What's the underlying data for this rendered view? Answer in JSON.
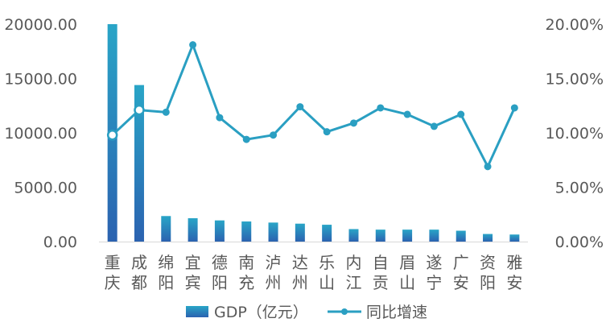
{
  "chart_data": {
    "type": "bar",
    "title": "",
    "categories": [
      "重庆",
      "成都",
      "绵阳",
      "宜宾",
      "德阳",
      "南充",
      "泸州",
      "达州",
      "乐山",
      "内江",
      "自贡",
      "眉山",
      "遂宁",
      "广安",
      "资阳",
      "雅安"
    ],
    "category_lines": [
      [
        "重",
        "庆"
      ],
      [
        "成",
        "都"
      ],
      [
        "绵",
        "阳"
      ],
      [
        "宜",
        "宾"
      ],
      [
        "德",
        "阳"
      ],
      [
        "南",
        "充"
      ],
      [
        "泸",
        "州"
      ],
      [
        "达",
        "州"
      ],
      [
        "乐",
        "山"
      ],
      [
        "内",
        "江"
      ],
      [
        "自",
        "贡"
      ],
      [
        "眉",
        "山"
      ],
      [
        "遂",
        "宁"
      ],
      [
        "广",
        "安"
      ],
      [
        "资",
        "阳"
      ],
      [
        "雅",
        "安"
      ]
    ],
    "series": [
      {
        "name": "GDP（亿元）",
        "type": "bar",
        "axis": "left",
        "values": [
          20000,
          14400,
          2350,
          2150,
          1950,
          1850,
          1750,
          1650,
          1550,
          1150,
          1100,
          1100,
          1100,
          1000,
          700,
          650
        ]
      },
      {
        "name": "同比增速",
        "type": "line",
        "axis": "right",
        "values": [
          9.8,
          12.1,
          11.9,
          18.1,
          11.4,
          9.4,
          9.8,
          12.4,
          10.1,
          10.9,
          12.3,
          11.7,
          10.6,
          11.7,
          6.9,
          12.3
        ]
      }
    ],
    "y_left": {
      "ylim": [
        0,
        20000
      ],
      "ticks": [
        0,
        5000,
        10000,
        15000,
        20000
      ],
      "tick_labels": [
        "0.00",
        "5000.00",
        "10000.00",
        "15000.00",
        "20000.00"
      ]
    },
    "y_right": {
      "ylim": [
        0,
        20
      ],
      "ticks": [
        0,
        5,
        10,
        15,
        20
      ],
      "tick_labels": [
        "0.00%",
        "5.00%",
        "10.00%",
        "15.00%",
        "20.00%"
      ]
    },
    "xlabel": "",
    "ylabel": "",
    "grid": false,
    "legend_position": "bottom",
    "colors": {
      "bar_top": "#29a5c7",
      "bar_bottom": "#2b62b0",
      "line": "#2a9fc2",
      "text": "#595959",
      "axis": "#d9d9d9"
    }
  }
}
